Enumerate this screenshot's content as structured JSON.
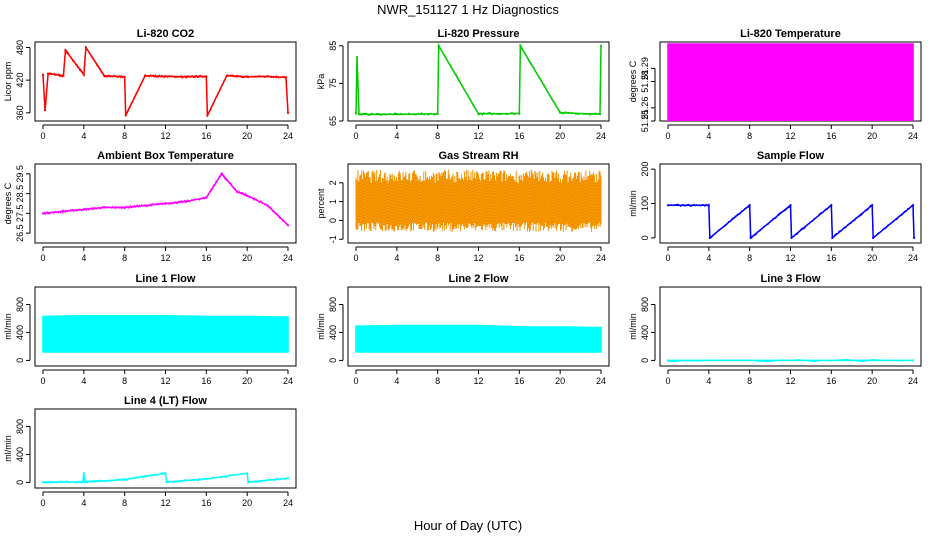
{
  "figure": {
    "title": "NWR_151127  1 Hz Diagnostics",
    "xlabel": "Hour of Day (UTC)"
  },
  "chart_data": [
    {
      "type": "line",
      "title": "Li-820 CO2",
      "ylabel": "Licor ppm",
      "color": "#ff0000",
      "xlim": [
        0,
        24
      ],
      "ylim": [
        345,
        490
      ],
      "xticks": [
        0,
        4,
        8,
        12,
        16,
        20,
        24
      ],
      "yticks": [
        360,
        420,
        480
      ],
      "series": [
        {
          "name": "CO2",
          "x": [
            0,
            0.2,
            0.5,
            2,
            2.2,
            4,
            4.2,
            6,
            8,
            8.1,
            10,
            12,
            14,
            16,
            16.1,
            18,
            20,
            22,
            23.8,
            24
          ],
          "y": [
            430,
            365,
            432,
            428,
            475,
            430,
            480,
            428,
            426,
            355,
            428,
            427,
            426,
            427,
            355,
            428,
            426,
            427,
            425,
            360
          ]
        }
      ]
    },
    {
      "type": "line",
      "title": "Li-820 Pressure",
      "ylabel": "kPa",
      "color": "#00cc00",
      "xlim": [
        0,
        24
      ],
      "ylim": [
        65,
        86
      ],
      "xticks": [
        0,
        4,
        8,
        12,
        16,
        20,
        24
      ],
      "yticks": [
        65,
        75,
        85
      ],
      "series": [
        {
          "name": "Pressure",
          "x": [
            0,
            0.1,
            0.3,
            4,
            8,
            8.1,
            12,
            16,
            16.1,
            20,
            23.9,
            24
          ],
          "y": [
            67,
            82,
            66.8,
            66.8,
            66.9,
            85,
            66.9,
            67,
            85,
            67.2,
            66.8,
            85
          ]
        }
      ]
    },
    {
      "type": "area",
      "title": "Li-820 Temperature",
      "ylabel": "degrees C",
      "color": "#ff00ff",
      "xlim": [
        0,
        24
      ],
      "ylim": [
        51.25,
        51.31
      ],
      "xticks": [
        0,
        4,
        8,
        12,
        16,
        20,
        24
      ],
      "yticks": [
        51.25,
        51.26,
        51.28,
        51.29
      ],
      "series": [
        {
          "name": "Temperature",
          "x": [
            0,
            24
          ],
          "y": [
            51.25,
            51.3
          ]
        }
      ]
    },
    {
      "type": "line",
      "title": "Ambient Box Temperature",
      "ylabel": "degrees C",
      "color": "#ff00ff",
      "xlim": [
        0,
        24
      ],
      "ylim": [
        26,
        30
      ],
      "xticks": [
        0,
        4,
        8,
        12,
        16,
        20,
        24
      ],
      "yticks": [
        26.5,
        27.5,
        28.5,
        29.5
      ],
      "series": [
        {
          "name": "Box Temp",
          "x": [
            0,
            2,
            4,
            6,
            8,
            10,
            12,
            14,
            16,
            17,
            17.5,
            18,
            19,
            20,
            22,
            24
          ],
          "y": [
            27.5,
            27.6,
            27.7,
            27.8,
            27.8,
            27.9,
            28.0,
            28.1,
            28.3,
            29.1,
            29.5,
            29.2,
            28.6,
            28.4,
            27.9,
            26.9
          ]
        }
      ]
    },
    {
      "type": "scatter",
      "title": "Gas Stream RH",
      "ylabel": "percent",
      "color": "#ff9900",
      "xlim": [
        0,
        24
      ],
      "ylim": [
        -1.2,
        3
      ],
      "xticks": [
        0,
        4,
        8,
        12,
        16,
        20,
        24
      ],
      "yticks": [
        -1,
        0,
        1,
        2
      ],
      "series": [
        {
          "name": "RH",
          "x": [
            0,
            24
          ],
          "y": [
            1,
            1
          ]
        }
      ]
    },
    {
      "type": "line",
      "title": "Sample Flow",
      "ylabel": "ml/min",
      "color": "#0000ff",
      "xlim": [
        0,
        24
      ],
      "ylim": [
        -15,
        215
      ],
      "xticks": [
        0,
        4,
        8,
        12,
        16,
        20,
        24
      ],
      "yticks": [
        0,
        100,
        200
      ],
      "series": [
        {
          "name": "Sample",
          "x": [
            0,
            4,
            4.1,
            8,
            8.1,
            12,
            12.1,
            16,
            16.1,
            20,
            20.1,
            24,
            24.1
          ],
          "y": [
            95,
            95,
            0,
            95,
            0,
            95,
            0,
            95,
            0,
            95,
            0,
            95,
            0
          ]
        }
      ]
    },
    {
      "type": "area",
      "title": "Line 1 Flow",
      "ylabel": "ml/min",
      "color": "#00ffff",
      "xlim": [
        0,
        24
      ],
      "ylim": [
        -80,
        1050
      ],
      "xticks": [
        0,
        4,
        8,
        12,
        16,
        20,
        24
      ],
      "yticks": [
        0,
        400,
        800
      ],
      "series": [
        {
          "name": "Line 1",
          "x": [
            0,
            4,
            8,
            12,
            16,
            20,
            24
          ],
          "y": [
            640,
            650,
            650,
            650,
            640,
            640,
            630
          ]
        }
      ]
    },
    {
      "type": "area",
      "title": "Line 2 Flow",
      "ylabel": "ml/min",
      "color": "#00ffff",
      "xlim": [
        0,
        24
      ],
      "ylim": [
        -80,
        1050
      ],
      "xticks": [
        0,
        4,
        8,
        12,
        16,
        20,
        24
      ],
      "yticks": [
        0,
        400,
        800
      ],
      "series": [
        {
          "name": "Line 2",
          "x": [
            0,
            4,
            8,
            12,
            16,
            20,
            24
          ],
          "y": [
            500,
            510,
            510,
            510,
            490,
            490,
            480
          ]
        }
      ]
    },
    {
      "type": "line",
      "title": "Line 3 Flow",
      "ylabel": "ml/min",
      "color": "#00ffff",
      "xlim": [
        0,
        24
      ],
      "ylim": [
        -80,
        1050
      ],
      "xticks": [
        0,
        4,
        8,
        12,
        16,
        20,
        24
      ],
      "yticks": [
        0,
        400,
        800
      ],
      "series": [
        {
          "name": "Line 3",
          "x": [
            0,
            24
          ],
          "y": [
            0,
            0
          ]
        }
      ]
    },
    {
      "type": "line",
      "title": "Line 4 (LT) Flow",
      "ylabel": "ml/min",
      "color": "#00ffff",
      "xlim": [
        0,
        24
      ],
      "ylim": [
        -80,
        1050
      ],
      "xticks": [
        0,
        4,
        8,
        12,
        16,
        20,
        24
      ],
      "yticks": [
        0,
        400,
        800
      ],
      "series": [
        {
          "name": "Line 4",
          "x": [
            0,
            3.9,
            4,
            4.1,
            8,
            12,
            12.1,
            16,
            20,
            20.1,
            24
          ],
          "y": [
            5,
            5,
            130,
            5,
            40,
            130,
            5,
            50,
            130,
            5,
            60
          ]
        }
      ]
    }
  ]
}
